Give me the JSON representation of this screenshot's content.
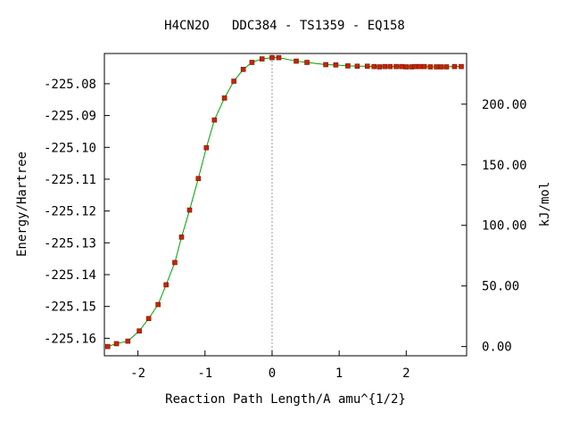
{
  "chart_data": {
    "type": "line",
    "title": "H4CN2O   DDC384 - TS1359 - EQ158",
    "xlabel": "Reaction Path Length/A amu^{1/2}",
    "ylabel": "Energy/Hartree",
    "y2label": "kJ/mol",
    "xlim": [
      -2.5,
      2.9
    ],
    "ylim": [
      -225.1655,
      -225.0705
    ],
    "y2_zero_energy": -225.1626,
    "x_ticks": [
      -2,
      -1,
      0,
      1,
      2
    ],
    "x_tick_labels": [
      "-2",
      "-1",
      "0",
      "1",
      "2"
    ],
    "y_ticks": [
      -225.08,
      -225.09,
      -225.1,
      -225.11,
      -225.12,
      -225.13,
      -225.14,
      -225.15,
      -225.16
    ],
    "y_tick_labels": [
      "-225.08",
      "-225.09",
      "-225.10",
      "-225.11",
      "-225.12",
      "-225.13",
      "-225.14",
      "-225.15",
      "-225.16"
    ],
    "y2_ticks": [
      0,
      50,
      100,
      150,
      200
    ],
    "y2_tick_labels": [
      "0.00",
      "50.00",
      "100.00",
      "150.00",
      "200.00"
    ],
    "ts_marker_x": 0,
    "line_color": "#00a000",
    "marker_color": "#cc2200",
    "series": [
      {
        "x": [
          -2.45,
          -2.32,
          -2.15,
          -1.98,
          -1.84,
          -1.7,
          -1.58,
          -1.45,
          -1.35,
          -1.23,
          -1.1,
          -0.98,
          -0.86,
          -0.71,
          -0.57,
          -0.43,
          -0.3,
          -0.15,
          0.0,
          0.1,
          0.36,
          0.52,
          0.8,
          0.95,
          1.13,
          1.27,
          1.42,
          1.52,
          1.6,
          1.68,
          1.76,
          1.85,
          1.93,
          2.0,
          2.08,
          2.13,
          2.2,
          2.27,
          2.36,
          2.45,
          2.52,
          2.6,
          2.72,
          2.82
        ],
        "y": [
          -225.1626,
          -225.1617,
          -225.1609,
          -225.1577,
          -225.1538,
          -225.1494,
          -225.1432,
          -225.1362,
          -225.1282,
          -225.1197,
          -225.1098,
          -225.1001,
          -225.0914,
          -225.0845,
          -225.0792,
          -225.0755,
          -225.0733,
          -225.0722,
          -225.0718,
          -225.0718,
          -225.0729,
          -225.0733,
          -225.074,
          -225.0741,
          -225.0744,
          -225.0745,
          -225.0745,
          -225.0746,
          -225.0747,
          -225.0746,
          -225.0746,
          -225.0746,
          -225.0746,
          -225.0747,
          -225.0747,
          -225.0746,
          -225.0746,
          -225.0746,
          -225.0747,
          -225.0747,
          -225.0747,
          -225.0747,
          -225.0746,
          -225.0746
        ]
      }
    ]
  }
}
